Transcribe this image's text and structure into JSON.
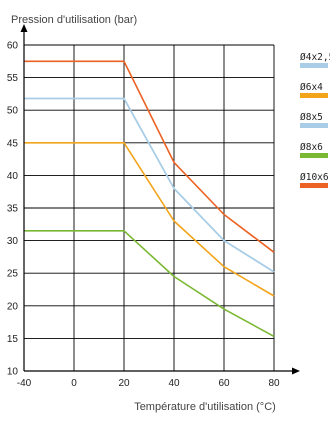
{
  "chart_data": {
    "type": "line",
    "title": "",
    "ylabel": "Pression d'utilisation (bar)",
    "xlabel": "Température d'utilisation (°C)",
    "xlim": [
      -40,
      80
    ],
    "ylim": [
      10,
      60
    ],
    "xticks": [
      -40,
      0,
      20,
      40,
      60,
      80
    ],
    "yticks": [
      10,
      15,
      20,
      25,
      30,
      35,
      40,
      45,
      50,
      55,
      60
    ],
    "grid": true,
    "legend_position": "right",
    "series": [
      {
        "name": "Ø4x2,5",
        "color": "#a9cde6",
        "x": [
          -40,
          20,
          40,
          60,
          80
        ],
        "y": [
          51.8,
          51.8,
          38.0,
          30.0,
          25.2
        ]
      },
      {
        "name": "Ø6x4",
        "color": "#f2a41a",
        "x": [
          -40,
          20,
          40,
          60,
          80
        ],
        "y": [
          45.0,
          45.0,
          33.0,
          26.0,
          21.5
        ]
      },
      {
        "name": "Ø8x5",
        "color": "#a9cde6",
        "x": [
          -40,
          20,
          40,
          60,
          80
        ],
        "y": [
          51.8,
          51.8,
          38.0,
          30.0,
          25.2
        ]
      },
      {
        "name": "Ø8x6",
        "color": "#7ab833",
        "x": [
          -40,
          20,
          40,
          60,
          80
        ],
        "y": [
          31.5,
          31.5,
          24.5,
          19.5,
          15.3
        ]
      },
      {
        "name": "Ø10x6",
        "color": "#ec6222",
        "x": [
          -40,
          20,
          40,
          60,
          80
        ],
        "y": [
          57.5,
          57.5,
          42.0,
          34.0,
          28.2
        ]
      }
    ]
  }
}
